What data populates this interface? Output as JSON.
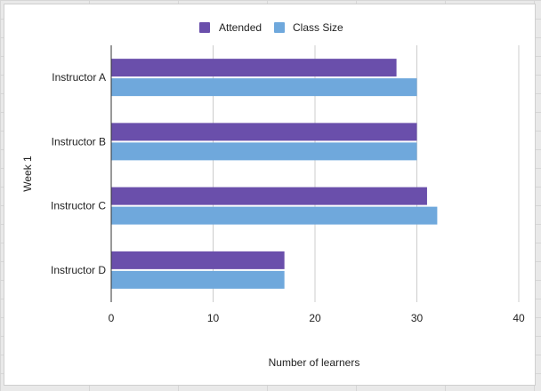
{
  "chart_data": {
    "type": "bar",
    "orientation": "horizontal",
    "categories": [
      "Instructor A",
      "Instructor B",
      "Instructor C",
      "Instructor D"
    ],
    "series": [
      {
        "name": "Attended",
        "color": "#6a4fab",
        "values": [
          28,
          30,
          31,
          17
        ]
      },
      {
        "name": "Class Size",
        "color": "#6fa8dc",
        "values": [
          30,
          30,
          32,
          17
        ]
      }
    ],
    "xlabel": "Number of learners",
    "ylabel": "Week 1",
    "xlim": [
      0,
      40
    ],
    "xticks": [
      "0",
      "10",
      "20",
      "30",
      "40"
    ],
    "grid": true,
    "legend_position": "top"
  }
}
